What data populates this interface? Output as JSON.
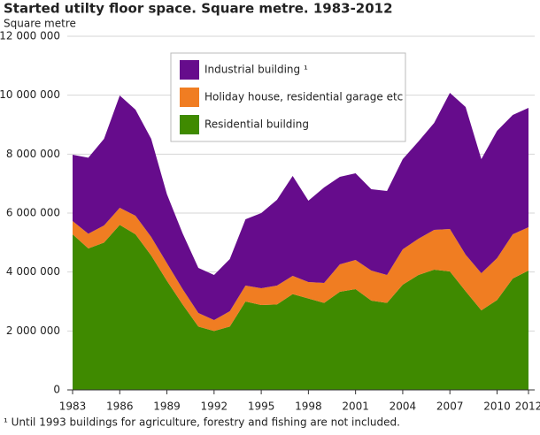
{
  "chart_data": {
    "type": "stacked_area",
    "title": "Started utilty floor space. Square metre. 1983-2012",
    "y_label": "Square metre",
    "footnote": "¹ Until 1993 buildings for agriculture, forestry and fishing are not included.",
    "x": [
      1983,
      1984,
      1985,
      1986,
      1987,
      1988,
      1989,
      1990,
      1991,
      1992,
      1993,
      1994,
      1995,
      1996,
      1997,
      1998,
      1999,
      2000,
      2001,
      2002,
      2003,
      2004,
      2005,
      2006,
      2007,
      2008,
      2009,
      2010,
      2011,
      2012
    ],
    "series": [
      {
        "name": "Residential building",
        "color": "#3f8a00",
        "values": [
          5280000,
          4800000,
          5000000,
          5600000,
          5280000,
          4560000,
          3700000,
          2900000,
          2150000,
          2000000,
          2150000,
          3000000,
          2880000,
          2900000,
          3250000,
          3100000,
          2950000,
          3330000,
          3420000,
          3030000,
          2950000,
          3570000,
          3900000,
          4080000,
          4020000,
          3350000,
          2700000,
          3050000,
          3780000,
          4050000
        ]
      },
      {
        "name": "Holiday house, residential garage etc",
        "color": "#f07d22",
        "values": [
          450000,
          500000,
          580000,
          580000,
          630000,
          630000,
          600000,
          520000,
          460000,
          370000,
          520000,
          540000,
          570000,
          640000,
          620000,
          560000,
          680000,
          930000,
          990000,
          1020000,
          950000,
          1200000,
          1230000,
          1350000,
          1440000,
          1240000,
          1260000,
          1420000,
          1500000,
          1470000
        ]
      },
      {
        "name": "Industrial building ¹",
        "color": "#660c8c",
        "values": [
          2250000,
          2580000,
          2940000,
          3810000,
          3600000,
          3330000,
          2340000,
          1890000,
          1530000,
          1530000,
          1770000,
          2250000,
          2550000,
          2910000,
          3390000,
          2760000,
          3240000,
          2970000,
          2940000,
          2760000,
          2850000,
          3060000,
          3300000,
          3630000,
          4620000,
          5010000,
          3870000,
          4320000,
          4050000,
          4050000
        ]
      }
    ],
    "xlim": [
      1983,
      2012
    ],
    "xticks": [
      1983,
      1986,
      1989,
      1992,
      1995,
      1998,
      2001,
      2004,
      2007,
      2010,
      2012
    ],
    "ylim": [
      0,
      12000000
    ],
    "yticks": [
      0,
      {
        "value": 2000000,
        "label": "2 000 000"
      },
      {
        "value": 4000000,
        "label": "4 000 000"
      },
      {
        "value": 6000000,
        "label": "6 000 000"
      },
      {
        "value": 8000000,
        "label": "8 000 000"
      },
      {
        "value": 10000000,
        "label": "10 000 000"
      },
      {
        "value": 12000000,
        "label": "12 000 000"
      }
    ],
    "grid": true
  }
}
